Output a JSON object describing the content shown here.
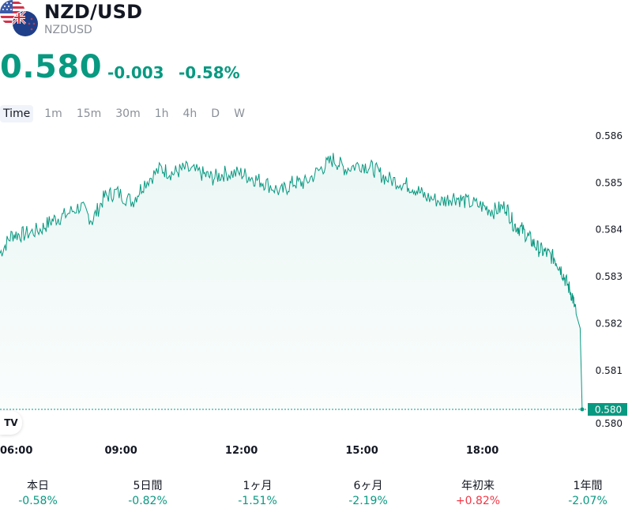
{
  "symbol": {
    "title": "NZD/USD",
    "ticker": "NZDUSD"
  },
  "quote": {
    "price": "0.580",
    "change": "-0.003",
    "change_pct": "-0.58%"
  },
  "colors": {
    "accent": "#089981",
    "negative_red": "#f23645",
    "line": "#089981"
  },
  "tabs": [
    {
      "label": "Time",
      "active": true
    },
    {
      "label": "1m"
    },
    {
      "label": "15m"
    },
    {
      "label": "30m"
    },
    {
      "label": "1h"
    },
    {
      "label": "4h"
    },
    {
      "label": "D"
    },
    {
      "label": "W"
    }
  ],
  "chart_data": {
    "type": "area",
    "x_ticks": [
      "06:00",
      "09:00",
      "12:00",
      "15:00",
      "18:00"
    ],
    "y_ticks": [
      "0.586",
      "0.585",
      "0.584",
      "0.583",
      "0.582",
      "0.581",
      "0.580"
    ],
    "ylim": [
      0.5798,
      0.5862
    ],
    "xlim": [
      6.0,
      20.6
    ],
    "last_label": "0.580",
    "last_value": 0.58017,
    "series": [
      {
        "x": [
          6.0,
          6.3,
          6.6,
          7.0,
          7.3,
          7.6,
          8.0,
          8.3,
          8.6,
          8.9,
          9.3,
          9.6,
          10.0,
          10.3,
          10.6,
          11.0,
          11.3,
          11.6,
          12.0,
          12.3,
          12.6,
          13.0,
          13.3,
          13.6,
          14.0,
          14.3,
          14.6,
          15.0,
          15.3,
          15.6,
          16.0,
          16.3,
          16.6,
          17.0,
          17.3,
          17.6,
          18.0,
          18.3,
          18.6,
          18.8,
          19.0,
          19.2,
          19.4,
          19.6,
          19.8,
          19.95,
          20.1,
          20.25,
          20.35,
          20.45,
          20.5
        ],
        "values": [
          0.5835,
          0.5839,
          0.5839,
          0.584,
          0.5842,
          0.5843,
          0.5845,
          0.5842,
          0.5847,
          0.5848,
          0.5846,
          0.585,
          0.5853,
          0.5852,
          0.5853,
          0.5852,
          0.5851,
          0.5852,
          0.5852,
          0.5851,
          0.585,
          0.5848,
          0.585,
          0.585,
          0.5853,
          0.5855,
          0.5853,
          0.5854,
          0.5853,
          0.5851,
          0.585,
          0.5849,
          0.5847,
          0.5846,
          0.5847,
          0.5846,
          0.5845,
          0.5844,
          0.5845,
          0.5841,
          0.584,
          0.5838,
          0.5836,
          0.5835,
          0.5834,
          0.5832,
          0.5829,
          0.5826,
          0.5822,
          0.5819,
          0.58017
        ]
      }
    ]
  },
  "performance": [
    {
      "label": "本日",
      "value": "-0.58%",
      "sign": "neg"
    },
    {
      "label": "5日間",
      "value": "-0.82%",
      "sign": "neg"
    },
    {
      "label": "1ヶ月",
      "value": "-1.51%",
      "sign": "neg"
    },
    {
      "label": "6ヶ月",
      "value": "-2.19%",
      "sign": "neg"
    },
    {
      "label": "年初来",
      "value": "+0.82%",
      "sign": "pos"
    },
    {
      "label": "1年間",
      "value": "-2.07%",
      "sign": "neg"
    }
  ]
}
